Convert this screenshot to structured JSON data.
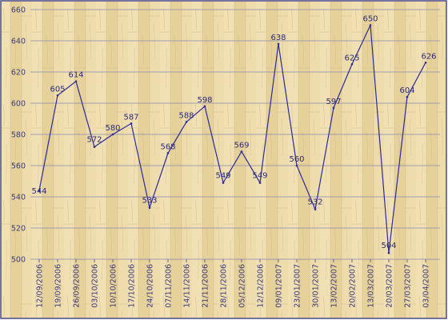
{
  "chart_data": {
    "type": "line",
    "title": "",
    "xlabel": "",
    "ylabel": "",
    "ylim": [
      500,
      660
    ],
    "yticks": [
      500,
      520,
      540,
      560,
      580,
      600,
      620,
      640,
      660
    ],
    "grid": true,
    "legend": "none",
    "categories": [
      "12/09/2006",
      "19/09/2006",
      "26/09/2006",
      "03/10/2006",
      "10/10/2006",
      "17/10/2006",
      "24/10/2006",
      "07/11/2006",
      "14/11/2006",
      "21/11/2006",
      "28/11/2006",
      "05/12/2006",
      "12/12/2006",
      "09/01/2007",
      "23/01/2007",
      "30/01/2007",
      "13/02/2007",
      "20/02/2007",
      "13/03/2007",
      "20/03/2007",
      "27/03/2007",
      "03/04/2007"
    ],
    "values": [
      544,
      605,
      614,
      572,
      580,
      587,
      533,
      568,
      588,
      598,
      549,
      569,
      549,
      638,
      560,
      532,
      597,
      625,
      650,
      504,
      604,
      626
    ],
    "colors": {
      "line": "#2a2a9a",
      "grid": "#8a8ab0",
      "frame": "#4a4a8a",
      "background": "#ead7a3"
    }
  }
}
